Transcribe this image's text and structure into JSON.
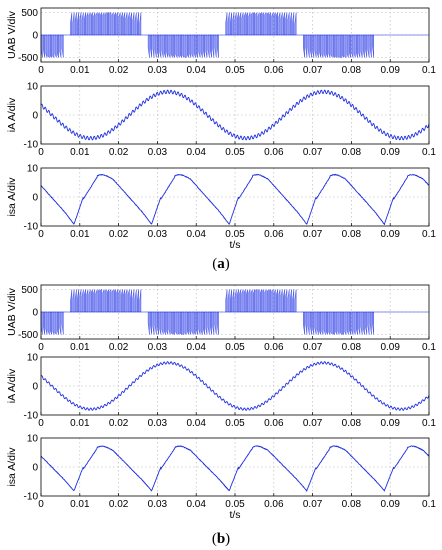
{
  "colors": {
    "series": "#1f2fe0",
    "grid": "#b0b0b0"
  },
  "figures": [
    {
      "caption_label": "a",
      "xlabel": "t/s"
    },
    {
      "caption_label": "b",
      "xlabel": "t/s"
    }
  ],
  "chart_data": [
    {
      "type": "line",
      "figure": "a",
      "ylabel": "UAB V/div",
      "xlabel": "",
      "xlim": [
        0,
        0.1
      ],
      "ylim": [
        -600,
        600
      ],
      "x_ticks": [
        "0",
        "0.01",
        "0.02",
        "0.03",
        "0.04",
        "0.05",
        "0.06",
        "0.07",
        "0.08",
        "0.09",
        "0.1"
      ],
      "y_ticks": [
        "-500",
        "0",
        "500"
      ],
      "grid": true,
      "series": [
        {
          "kind": "pwm_band",
          "period": 0.04,
          "phase": 0.0068,
          "level": 500,
          "zero_gap": 0.0008
        }
      ]
    },
    {
      "type": "line",
      "figure": "a",
      "ylabel": "iA A/div",
      "xlabel": "",
      "xlim": [
        0,
        0.1
      ],
      "ylim": [
        -10,
        10
      ],
      "x_ticks": [
        "0",
        "0.01",
        "0.02",
        "0.03",
        "0.04",
        "0.05",
        "0.06",
        "0.07",
        "0.08",
        "0.09",
        "0.1"
      ],
      "y_ticks": [
        "-10",
        "0",
        "10"
      ],
      "grid": true,
      "series": [
        {
          "kind": "sine_ripple",
          "period": 0.04,
          "amplitude": 8,
          "phase": -0.0072,
          "ripple": 0.6
        }
      ]
    },
    {
      "type": "line",
      "figure": "a",
      "ylabel": "isa A/div",
      "xlabel": "t/s",
      "xlim": [
        0,
        0.1
      ],
      "ylim": [
        -10,
        10
      ],
      "x_ticks": [
        "0",
        "0.01",
        "0.02",
        "0.03",
        "0.04",
        "0.05",
        "0.06",
        "0.07",
        "0.08",
        "0.09",
        "0.1"
      ],
      "y_ticks": [
        "-10",
        "0",
        "10"
      ],
      "grid": true,
      "series": [
        {
          "kind": "six_step",
          "period": 0.02,
          "amplitude": 7.3,
          "peak": 9.4,
          "phase": 0.0085
        }
      ]
    },
    {
      "type": "line",
      "figure": "b",
      "ylabel": "UAB V/div",
      "xlabel": "",
      "xlim": [
        0,
        0.1
      ],
      "ylim": [
        -600,
        600
      ],
      "x_ticks": [
        "0",
        "0.01",
        "0.02",
        "0.03",
        "0.04",
        "0.05",
        "0.06",
        "0.07",
        "0.08",
        "0.09",
        "0.1"
      ],
      "y_ticks": [
        "-500",
        "0",
        "500"
      ],
      "grid": true,
      "series": [
        {
          "kind": "pwm_band",
          "period": 0.04,
          "phase": 0.0068,
          "level": 500,
          "zero_gap": 0.0008
        }
      ]
    },
    {
      "type": "line",
      "figure": "b",
      "ylabel": "iA A/div",
      "xlabel": "",
      "xlim": [
        0,
        0.1
      ],
      "ylim": [
        -10,
        10
      ],
      "x_ticks": [
        "0",
        "0.01",
        "0.02",
        "0.03",
        "0.04",
        "0.05",
        "0.06",
        "0.07",
        "0.08",
        "0.09",
        "0.1"
      ],
      "y_ticks": [
        "-10",
        "0",
        "10"
      ],
      "grid": true,
      "series": [
        {
          "kind": "sine_ripple",
          "period": 0.04,
          "amplitude": 8,
          "phase": -0.0072,
          "ripple": 0.4
        }
      ]
    },
    {
      "type": "line",
      "figure": "b",
      "ylabel": "isa A/div",
      "xlabel": "t/s",
      "xlim": [
        0,
        0.1
      ],
      "ylim": [
        -10,
        10
      ],
      "x_ticks": [
        "0",
        "0.01",
        "0.02",
        "0.03",
        "0.04",
        "0.05",
        "0.06",
        "0.07",
        "0.08",
        "0.09",
        "0.1"
      ],
      "y_ticks": [
        "-10",
        "0",
        "10"
      ],
      "grid": true,
      "series": [
        {
          "kind": "six_step",
          "period": 0.02,
          "amplitude": 6.8,
          "peak": 8.2,
          "phase": 0.0085
        }
      ]
    }
  ]
}
